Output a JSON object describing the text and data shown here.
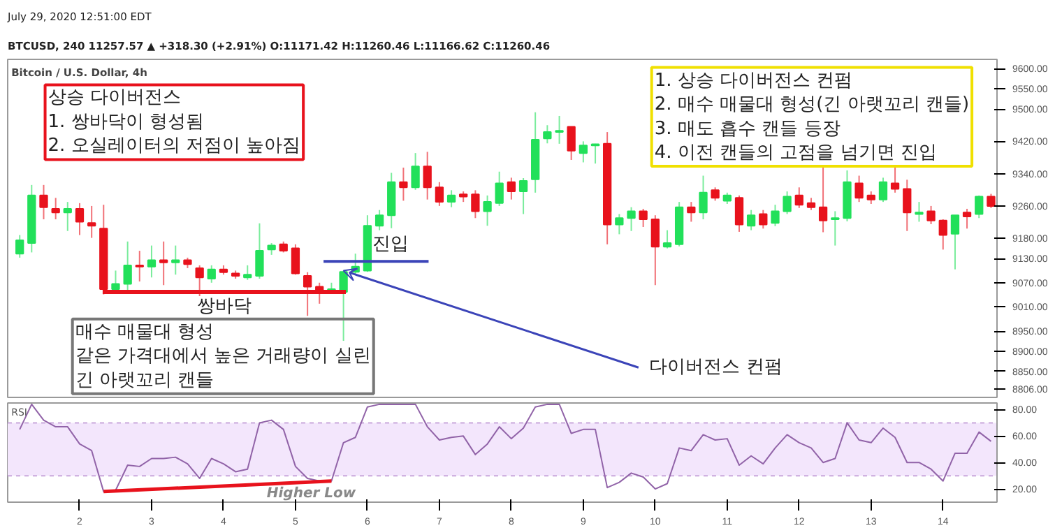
{
  "chart_data": [
    {
      "type": "candlestick",
      "title": "Bitcoin / U.S. Dollar, 4h",
      "x": [
        1.167,
        1.333,
        1.5,
        1.667,
        1.833,
        2.0,
        2.167,
        2.333,
        2.5,
        2.667,
        2.833,
        3.0,
        3.167,
        3.333,
        3.5,
        3.667,
        3.833,
        4.0,
        4.167,
        4.333,
        4.5,
        4.667,
        4.833,
        5.0,
        5.167,
        5.333,
        5.5,
        5.667,
        5.833,
        6.0,
        6.167,
        6.333,
        6.5,
        6.667,
        6.833,
        7.0,
        7.167,
        7.333,
        7.5,
        7.667,
        7.833,
        8.0,
        8.167,
        8.333,
        8.5,
        8.667,
        8.833,
        9.0,
        9.167,
        9.333,
        9.5,
        9.667,
        9.833,
        10.0,
        10.167,
        10.333,
        10.5,
        10.667,
        10.833,
        11.0,
        11.167,
        11.333,
        11.5,
        11.667,
        11.833,
        12.0,
        12.167,
        12.333,
        12.5,
        12.667,
        12.833,
        13.0,
        13.167,
        13.333,
        13.5,
        13.667,
        13.833,
        14.0,
        14.167,
        14.333,
        14.5,
        14.667
      ],
      "ohlc": [
        [
          9142,
          9188,
          9132,
          9175
        ],
        [
          9168,
          9312,
          9145,
          9286
        ],
        [
          9286,
          9312,
          9227,
          9257
        ],
        [
          9253,
          9280,
          9227,
          9244
        ],
        [
          9244,
          9270,
          9198,
          9253
        ],
        [
          9253,
          9267,
          9188,
          9221
        ],
        [
          9218,
          9260,
          9181,
          9211
        ],
        [
          9204,
          9263,
          9041,
          9054
        ],
        [
          9054,
          9100,
          9045,
          9067
        ],
        [
          9067,
          9172,
          9050,
          9113
        ],
        [
          9113,
          9149,
          9073,
          9110
        ],
        [
          9110,
          9162,
          9083,
          9126
        ],
        [
          9126,
          9172,
          9064,
          9120
        ],
        [
          9120,
          9162,
          9090,
          9126
        ],
        [
          9126,
          9132,
          9106,
          9116
        ],
        [
          9106,
          9113,
          9031,
          9083
        ],
        [
          9080,
          9113,
          9070,
          9103
        ],
        [
          9103,
          9113,
          9090,
          9096
        ],
        [
          9093,
          9100,
          9080,
          9087
        ],
        [
          9083,
          9113,
          9077,
          9090
        ],
        [
          9087,
          9217,
          9080,
          9149
        ],
        [
          9152,
          9168,
          9139,
          9162
        ],
        [
          9165,
          9172,
          9145,
          9149
        ],
        [
          9155,
          9165,
          9090,
          9093
        ],
        [
          9087,
          9096,
          8988,
          9060
        ],
        [
          9060,
          9070,
          9018,
          9051
        ],
        [
          9051,
          9070,
          9045,
          9054
        ],
        [
          9047,
          9100,
          8926,
          9097
        ],
        [
          9097,
          9142,
          9090,
          9110
        ],
        [
          9100,
          9237,
          9097,
          9211
        ],
        [
          9211,
          9250,
          9200,
          9237
        ],
        [
          9237,
          9342,
          9205,
          9319
        ],
        [
          9319,
          9355,
          9273,
          9306
        ],
        [
          9306,
          9391,
          9300,
          9358
        ],
        [
          9358,
          9394,
          9276,
          9306
        ],
        [
          9306,
          9319,
          9260,
          9270
        ],
        [
          9270,
          9299,
          9257,
          9286
        ],
        [
          9289,
          9296,
          9270,
          9283
        ],
        [
          9289,
          9299,
          9230,
          9247
        ],
        [
          9247,
          9286,
          9211,
          9270
        ],
        [
          9267,
          9345,
          9260,
          9316
        ],
        [
          9319,
          9330,
          9276,
          9296
        ],
        [
          9296,
          9329,
          9240,
          9322
        ],
        [
          9326,
          9492,
          9293,
          9424
        ],
        [
          9427,
          9460,
          9415,
          9443
        ],
        [
          9443,
          9483,
          9414,
          9446
        ],
        [
          9456,
          9456,
          9374,
          9397
        ],
        [
          9391,
          9420,
          9368,
          9410
        ],
        [
          9410,
          9414,
          9365,
          9413
        ],
        [
          9414,
          9443,
          9165,
          9214
        ],
        [
          9214,
          9240,
          9190,
          9230
        ],
        [
          9230,
          9257,
          9198,
          9247
        ],
        [
          9247,
          9253,
          9208,
          9227
        ],
        [
          9227,
          9237,
          9064,
          9159
        ],
        [
          9159,
          9200,
          9155,
          9168
        ],
        [
          9165,
          9270,
          9160,
          9257
        ],
        [
          9257,
          9270,
          9221,
          9244
        ],
        [
          9244,
          9335,
          9227,
          9293
        ],
        [
          9299,
          9306,
          9273,
          9280
        ],
        [
          9273,
          9293,
          9265,
          9286
        ],
        [
          9280,
          9286,
          9196,
          9214
        ],
        [
          9211,
          9250,
          9200,
          9237
        ],
        [
          9240,
          9250,
          9204,
          9214
        ],
        [
          9218,
          9263,
          9210,
          9247
        ],
        [
          9247,
          9296,
          9240,
          9283
        ],
        [
          9286,
          9306,
          9255,
          9263
        ],
        [
          9267,
          9280,
          9250,
          9257
        ],
        [
          9257,
          9358,
          9195,
          9224
        ],
        [
          9227,
          9247,
          9162,
          9230
        ],
        [
          9230,
          9348,
          9222,
          9319
        ],
        [
          9316,
          9335,
          9270,
          9280
        ],
        [
          9286,
          9296,
          9265,
          9276
        ],
        [
          9276,
          9330,
          9270,
          9319
        ],
        [
          9316,
          9361,
          9293,
          9302
        ],
        [
          9302,
          9325,
          9198,
          9244
        ],
        [
          9240,
          9270,
          9221,
          9244
        ],
        [
          9247,
          9260,
          9215,
          9224
        ],
        [
          9224,
          9227,
          9152,
          9188
        ],
        [
          9191,
          9237,
          9103,
          9237
        ],
        [
          9244,
          9253,
          9204,
          9234
        ],
        [
          9240,
          9286,
          9230,
          9283
        ],
        [
          9283,
          9290,
          9255,
          9260
        ]
      ],
      "colors": [
        "#22e05a",
        "#22e05a",
        "#e8121c",
        "#e8121c",
        "#22e05a",
        "#e8121c",
        "#e8121c",
        "#e8121c",
        "#22e05a",
        "#22e05a",
        "#e8121c",
        "#22e05a",
        "#e8121c",
        "#22e05a",
        "#e8121c",
        "#e8121c",
        "#22e05a",
        "#e8121c",
        "#e8121c",
        "#22e05a",
        "#22e05a",
        "#22e05a",
        "#e8121c",
        "#e8121c",
        "#e8121c",
        "#e8121c",
        "#22e05a",
        "#22e05a",
        "#22e05a",
        "#22e05a",
        "#22e05a",
        "#22e05a",
        "#e8121c",
        "#22e05a",
        "#e8121c",
        "#e8121c",
        "#22e05a",
        "#e8121c",
        "#e8121c",
        "#22e05a",
        "#22e05a",
        "#e8121c",
        "#22e05a",
        "#22e05a",
        "#22e05a",
        "#22e05a",
        "#e8121c",
        "#22e05a",
        "#22e05a",
        "#e8121c",
        "#22e05a",
        "#22e05a",
        "#e8121c",
        "#e8121c",
        "#22e05a",
        "#22e05a",
        "#e8121c",
        "#22e05a",
        "#e8121c",
        "#22e05a",
        "#e8121c",
        "#22e05a",
        "#e8121c",
        "#22e05a",
        "#22e05a",
        "#e8121c",
        "#e8121c",
        "#e8121c",
        "#22e05a",
        "#22e05a",
        "#e8121c",
        "#e8121c",
        "#22e05a",
        "#e8121c",
        "#e8121c",
        "#22e05a",
        "#e8121c",
        "#e8121c",
        "#22e05a",
        "#e8121c",
        "#22e05a",
        "#e8121c"
      ],
      "series": [
        {
          "type": "line",
          "color": "#e8121c",
          "x": [
            2.32,
            5.7
          ],
          "values": [
            9047,
            9047
          ]
        }
      ],
      "xlim": [
        1.0,
        14.75
      ],
      "ylim": [
        8786,
        9623
      ],
      "yticks": [
        {
          "value": 9600,
          "label": "9600.00"
        },
        {
          "value": 9550,
          "label": "9550.00"
        },
        {
          "value": 9500,
          "label": "9500.00"
        },
        {
          "value": 9420,
          "label": "9420.00"
        },
        {
          "value": 9340,
          "label": "9340.00"
        },
        {
          "value": 9260,
          "label": "9260.00"
        },
        {
          "value": 9180,
          "label": "9180.00"
        },
        {
          "value": 9130,
          "label": "9130.00"
        },
        {
          "value": 9070,
          "label": "9070.00"
        },
        {
          "value": 9010,
          "label": "9010.00"
        },
        {
          "value": 8950,
          "label": "8950.00"
        },
        {
          "value": 8900,
          "label": "8900.00"
        },
        {
          "value": 8850,
          "label": "8850.00"
        },
        {
          "value": 8806,
          "label": "8806.00"
        }
      ],
      "tick_labels": "y",
      "grid": false,
      "annotations": [
        "July 29, 2020 12:51:00 EDT",
        "BTCUSD, 240 11257.57 ▲ +318.30 (+2.91%) O:11171.42 H:11260.46 L:11166.62 C:11260.46",
        "상승 다이버전스\n1. 쌍바닥이 형성됨\n2. 오실레이터의 저점이 높아짐",
        "1. 상승 다이버전스 컨펌\n2. 매수 매물대 형성(긴 아랫꼬리 캔들)\n3. 매도 흡수 캔들 등장\n4. 이전 캔들의 고점을 넘기면 진입",
        "매수 매물대 형성\n같은 가격대에서 높은 거래량이 실린\n긴 아랫꼬리 캔들",
        "쌍바닥",
        {
          "text": "진입",
          "x": 6.12,
          "y": 9123
        },
        {
          "text": "다이버전스 컨펌",
          "x": 5.667,
          "y": 9100
        }
      ]
    },
    {
      "type": "line",
      "title": "RSI",
      "x": [
        1.167,
        1.333,
        1.5,
        1.667,
        1.833,
        2.0,
        2.167,
        2.333,
        2.5,
        2.667,
        2.833,
        3.0,
        3.167,
        3.333,
        3.5,
        3.667,
        3.833,
        4.0,
        4.167,
        4.333,
        4.5,
        4.667,
        4.833,
        5.0,
        5.167,
        5.333,
        5.5,
        5.667,
        5.833,
        6.0,
        6.167,
        6.333,
        6.5,
        6.667,
        6.833,
        7.0,
        7.167,
        7.333,
        7.5,
        7.667,
        7.833,
        8.0,
        8.167,
        8.333,
        8.5,
        8.667,
        8.833,
        9.0,
        9.167,
        9.333,
        9.5,
        9.667,
        9.833,
        10.0,
        10.167,
        10.333,
        10.5,
        10.667,
        10.833,
        11.0,
        11.167,
        11.333,
        11.5,
        11.667,
        11.833,
        12.0,
        12.167,
        12.333,
        12.5,
        12.667,
        12.833,
        13.0,
        13.167,
        13.333,
        13.5,
        13.667,
        13.833,
        14.0,
        14.167,
        14.333,
        14.5,
        14.667
      ],
      "series": [
        {
          "color": "#9163a8",
          "values": [
            65,
            84,
            72,
            67,
            67,
            54,
            49,
            18,
            19,
            38,
            37,
            43,
            43,
            44,
            39,
            28,
            43,
            39,
            33,
            35,
            70,
            72,
            65,
            37,
            28,
            26,
            26,
            55,
            59,
            82,
            84,
            84,
            84,
            84,
            67,
            57,
            59,
            60,
            46,
            54,
            67,
            58,
            66,
            82,
            84,
            84,
            62,
            65,
            65,
            21,
            25,
            32,
            29,
            20,
            24,
            51,
            49,
            61,
            57,
            58,
            38,
            45,
            39,
            51,
            61,
            55,
            51,
            40,
            43,
            70,
            57,
            55,
            66,
            59,
            40,
            40,
            35,
            26,
            47,
            47,
            63,
            56
          ]
        },
        {
          "type": "line",
          "color": "#e8121c",
          "x": [
            2.333,
            5.5
          ],
          "values": [
            18,
            26
          ]
        }
      ],
      "bands": [
        {
          "axis": "y",
          "from": 30,
          "to": 70,
          "color": "#f3e6fc"
        }
      ],
      "ref_lines": [
        {
          "axis": "y",
          "value": 30,
          "color": "#c9a8dc",
          "line_style": "dashed"
        },
        {
          "axis": "y",
          "value": 70,
          "color": "#c9a8dc",
          "line_style": "dashed"
        }
      ],
      "xlim": [
        1.0,
        14.75
      ],
      "ylim": [
        10,
        85
      ],
      "xticks": [
        2,
        3,
        4,
        5,
        6,
        7,
        8,
        9,
        10,
        11,
        12,
        13,
        14
      ],
      "yticks": [
        {
          "value": 20,
          "label": "20.00"
        },
        {
          "value": 40,
          "label": "40.00"
        },
        {
          "value": 60,
          "label": "60.00"
        },
        {
          "value": 80,
          "label": "80.00"
        }
      ],
      "grid": false,
      "annotations": [
        "Higher Low"
      ]
    }
  ]
}
